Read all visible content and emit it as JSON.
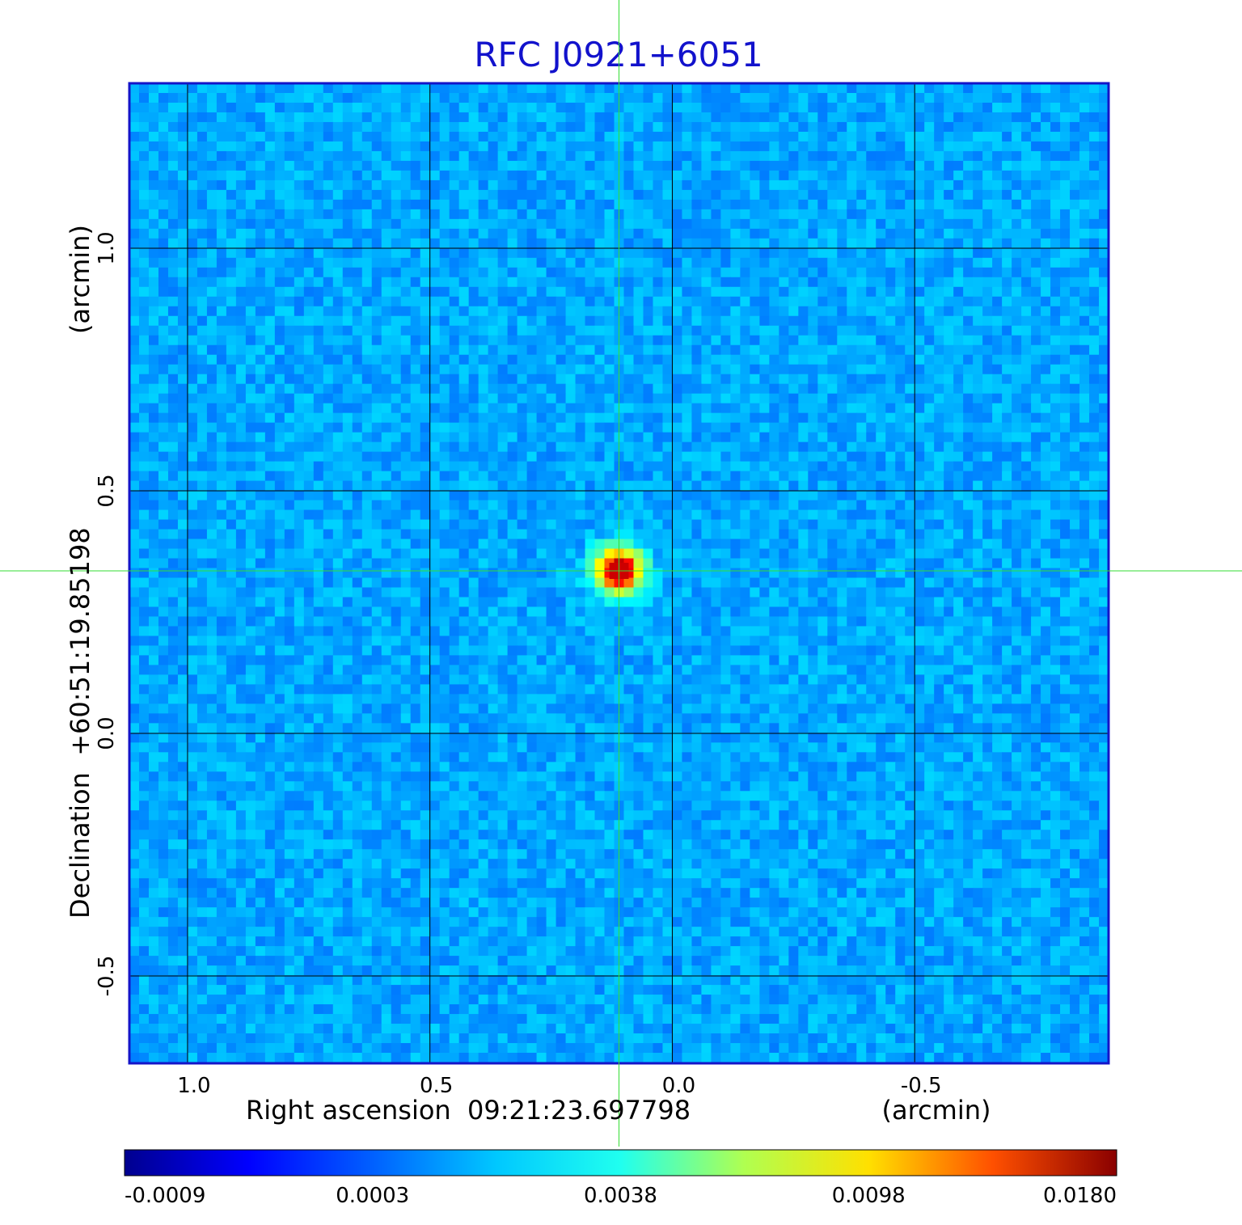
{
  "chart_data": {
    "type": "heatmap",
    "title": "RFC J0921+6051",
    "xlabel": "Right ascension  09:21:23.697798",
    "xunit": "(arcmin)",
    "ylabel": "Declination  +60:51:19.85198",
    "yunit": "(arcmin)",
    "xlim": [
      1.12,
      -0.9
    ],
    "ylim": [
      -0.68,
      1.34
    ],
    "x_ticks": [
      {
        "value": 1.0,
        "label": "1.0"
      },
      {
        "value": 0.5,
        "label": "0.5"
      },
      {
        "value": 0.0,
        "label": "0.0"
      },
      {
        "value": -0.5,
        "label": "-0.5"
      }
    ],
    "y_ticks": [
      {
        "value": 1.0,
        "label": "1.0"
      },
      {
        "value": 0.5,
        "label": "0.5"
      },
      {
        "value": 0.0,
        "label": "0.0"
      },
      {
        "value": -0.5,
        "label": "-0.5"
      }
    ],
    "grid": true,
    "crosshair": {
      "x": 0.11,
      "y": 0.335,
      "color": "#33dd33"
    },
    "source": {
      "x": 0.11,
      "y": 0.335,
      "peak": 0.018
    },
    "background_level": 0.0001,
    "colormap": "jet",
    "colorbar": {
      "ticks": [
        "-0.0009",
        "0.0003",
        "0.0038",
        "0.0098",
        "0.0180"
      ]
    },
    "colors": {
      "title": "#1212cc",
      "frame": "#1414c8",
      "grid": "#000000"
    }
  }
}
